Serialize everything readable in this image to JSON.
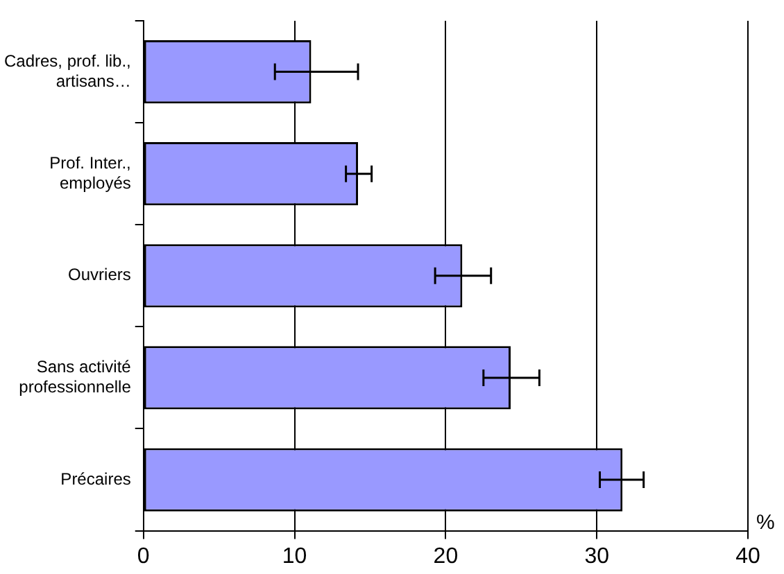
{
  "chart_data": {
    "type": "bar",
    "orientation": "horizontal",
    "xlabel": "%",
    "categories": [
      "Cadres, prof. lib., artisans…",
      "Prof. Inter., employés",
      "Ouvriers",
      "Sans activité professionnelle",
      "Précaires"
    ],
    "values": [
      11.1,
      14.2,
      21.1,
      24.3,
      31.7
    ],
    "errors": [
      [
        8.7,
        14.2
      ],
      [
        13.4,
        15.1
      ],
      [
        19.3,
        23.0
      ],
      [
        22.5,
        26.2
      ],
      [
        30.2,
        33.1
      ]
    ],
    "color": "#9999ff",
    "xlim": [
      0,
      40
    ],
    "xticks": [
      0,
      10,
      20,
      30,
      40
    ],
    "grid": "x",
    "legend": false
  }
}
